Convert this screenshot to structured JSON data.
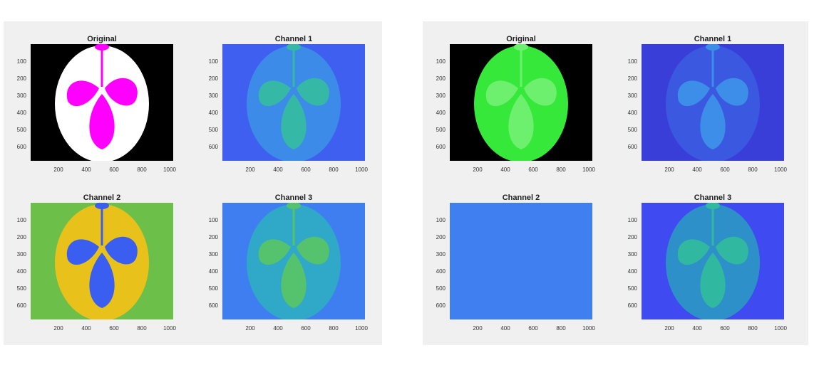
{
  "figures": [
    {
      "panels": [
        {
          "title": "Original",
          "ytick_labels": [
            "100",
            "200",
            "300",
            "400",
            "500",
            "600"
          ],
          "xtick_labels": [
            "200",
            "400",
            "600",
            "800",
            "1000"
          ],
          "colors": {
            "bg": "#000000",
            "fill": "#ffffff",
            "leaf": "#ff00ff"
          }
        },
        {
          "title": "Channel 1",
          "ytick_labels": [
            "100",
            "200",
            "300",
            "400",
            "500",
            "600"
          ],
          "xtick_labels": [
            "200",
            "400",
            "600",
            "800",
            "1000"
          ],
          "colors": {
            "bg": "#3f5ff0",
            "fill": "#3d8be8",
            "leaf": "#35b8a6"
          }
        },
        {
          "title": "Channel 2",
          "ytick_labels": [
            "100",
            "200",
            "300",
            "400",
            "500",
            "600"
          ],
          "xtick_labels": [
            "200",
            "400",
            "600",
            "800",
            "1000"
          ],
          "colors": {
            "bg": "#6cc04a",
            "fill": "#e8c21a",
            "leaf": "#3a5ef0"
          }
        },
        {
          "title": "Channel 3",
          "ytick_labels": [
            "100",
            "200",
            "300",
            "400",
            "500",
            "600"
          ],
          "xtick_labels": [
            "200",
            "400",
            "600",
            "800",
            "1000"
          ],
          "colors": {
            "bg": "#3f7ef0",
            "fill": "#30a8c8",
            "leaf": "#55c26e"
          }
        }
      ]
    },
    {
      "panels": [
        {
          "title": "Original",
          "ytick_labels": [
            "100",
            "200",
            "300",
            "400",
            "500",
            "600"
          ],
          "xtick_labels": [
            "200",
            "400",
            "600",
            "800",
            "1000"
          ],
          "colors": {
            "bg": "#000000",
            "fill": "#36e83a",
            "leaf": "#6df06d"
          }
        },
        {
          "title": "Channel 1",
          "ytick_labels": [
            "100",
            "200",
            "300",
            "400",
            "500",
            "600"
          ],
          "xtick_labels": [
            "200",
            "400",
            "600",
            "800",
            "1000"
          ],
          "colors": {
            "bg": "#3a3ed8",
            "fill": "#3a58e0",
            "leaf": "#3d8ee8"
          }
        },
        {
          "title": "Channel 2",
          "ytick_labels": [
            "100",
            "200",
            "300",
            "400",
            "500",
            "600"
          ],
          "xtick_labels": [
            "200",
            "400",
            "600",
            "800",
            "1000"
          ],
          "colors": {
            "bg": "#3f7ff0",
            "fill": "#3f7ff0",
            "leaf": "#3f7ff0"
          }
        },
        {
          "title": "Channel 3",
          "ytick_labels": [
            "100",
            "200",
            "300",
            "400",
            "500",
            "600"
          ],
          "xtick_labels": [
            "200",
            "400",
            "600",
            "800",
            "1000"
          ],
          "colors": {
            "bg": "#3f4af0",
            "fill": "#2e90c8",
            "leaf": "#30b8a0"
          }
        }
      ]
    }
  ]
}
